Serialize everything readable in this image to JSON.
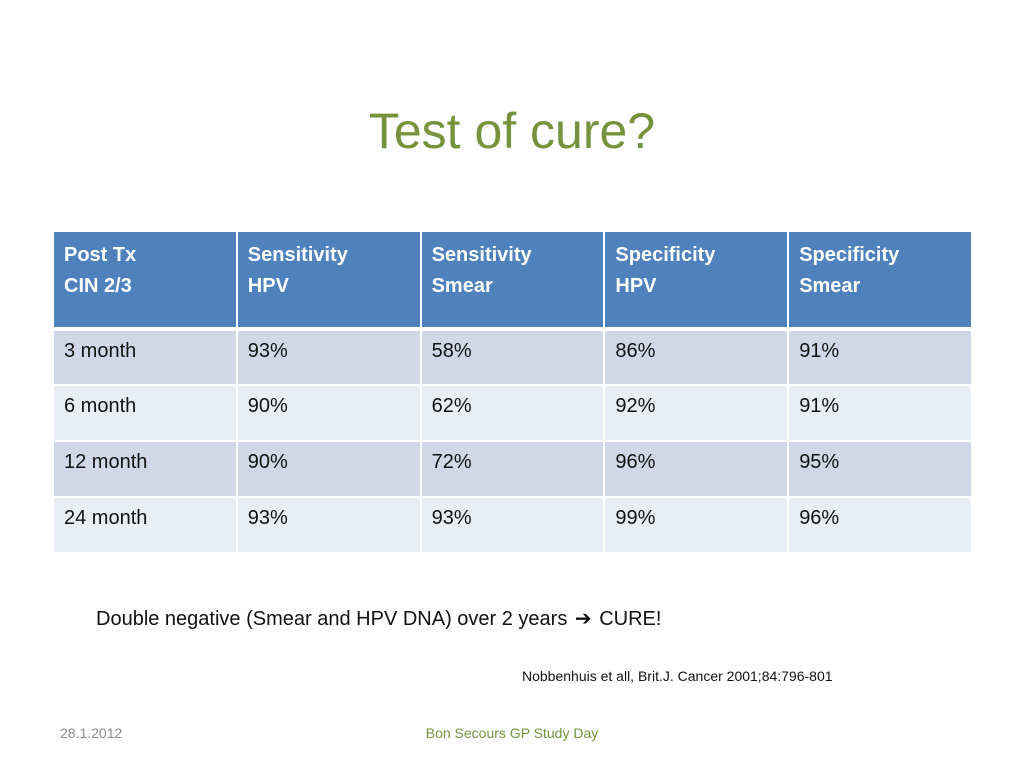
{
  "slide": {
    "title": "Test of cure?",
    "conclusion_before": "Double negative (Smear and HPV DNA) over 2 years",
    "conclusion_arrow": "➔",
    "conclusion_after": "CURE!",
    "citation": "Nobbenhuis et all, Brit.J. Cancer 2001;84:796-801"
  },
  "table": {
    "headers": [
      [
        "Post Tx",
        "CIN 2/3"
      ],
      [
        "Sensitivity",
        "HPV"
      ],
      [
        "Sensitivity",
        "Smear"
      ],
      [
        "Specificity",
        "HPV"
      ],
      [
        "Specificity",
        "Smear"
      ]
    ],
    "rows": [
      [
        "3 month",
        "93%",
        "58%",
        "86%",
        "91%"
      ],
      [
        "6 month",
        "90%",
        "62%",
        "92%",
        "91%"
      ],
      [
        "12 month",
        "90%",
        "72%",
        "96%",
        "95%"
      ],
      [
        "24 month",
        "93%",
        "93%",
        "99%",
        "96%"
      ]
    ]
  },
  "footer": {
    "date": "28.1.2012",
    "event": "Bon Secours GP Study Day"
  },
  "colors": {
    "title": "#76923c",
    "header_fill": "#4f81bd",
    "row_odd": "#d0d8e8",
    "row_even": "#e9edf4"
  }
}
